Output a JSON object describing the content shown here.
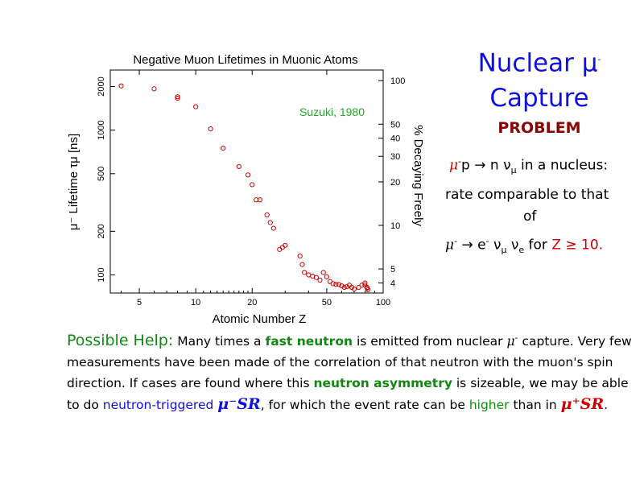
{
  "chart_data": {
    "type": "scatter",
    "title": "Negative Muon Lifetimes in Muonic Atoms",
    "xlabel": "Atomic Number  Z",
    "ylabel": "μ⁻ Lifetime  τμ [ns]",
    "y2label": "% Decaying Freely",
    "annotation": "Suzuki, 1980",
    "x_scale": "log",
    "y_scale": "log",
    "xlim": [
      3.5,
      100
    ],
    "ylim": [
      75,
      2600
    ],
    "x_ticks": [
      5,
      10,
      20,
      50,
      100
    ],
    "y_ticks": [
      100,
      200,
      500,
      1000,
      2000
    ],
    "y_tick_labels": [
      "100",
      "200",
      "500",
      "1000",
      "2000"
    ],
    "y2_ticks": [
      {
        "label": "100",
        "value": 2197
      },
      {
        "label": "50",
        "value": 1099
      },
      {
        "label": "40",
        "value": 879
      },
      {
        "label": "30",
        "value": 659
      },
      {
        "label": "20",
        "value": 439
      },
      {
        "label": "10",
        "value": 220
      },
      {
        "label": "5",
        "value": 110
      },
      {
        "label": "4",
        "value": 88
      }
    ],
    "marker_color": "#cc0000",
    "points": [
      {
        "x": 4,
        "y": 2020
      },
      {
        "x": 6,
        "y": 1930
      },
      {
        "x": 8,
        "y": 1700
      },
      {
        "x": 8,
        "y": 1660
      },
      {
        "x": 10,
        "y": 1450
      },
      {
        "x": 12,
        "y": 1020
      },
      {
        "x": 14,
        "y": 750
      },
      {
        "x": 17,
        "y": 560
      },
      {
        "x": 19,
        "y": 490
      },
      {
        "x": 20,
        "y": 420
      },
      {
        "x": 21,
        "y": 330
      },
      {
        "x": 22,
        "y": 330
      },
      {
        "x": 24,
        "y": 260
      },
      {
        "x": 25,
        "y": 230
      },
      {
        "x": 26,
        "y": 210
      },
      {
        "x": 28,
        "y": 150
      },
      {
        "x": 29,
        "y": 155
      },
      {
        "x": 30,
        "y": 160
      },
      {
        "x": 36,
        "y": 135
      },
      {
        "x": 37,
        "y": 118
      },
      {
        "x": 38,
        "y": 104
      },
      {
        "x": 40,
        "y": 100
      },
      {
        "x": 42,
        "y": 98
      },
      {
        "x": 44,
        "y": 96
      },
      {
        "x": 46,
        "y": 92
      },
      {
        "x": 48,
        "y": 104
      },
      {
        "x": 50,
        "y": 97
      },
      {
        "x": 52,
        "y": 90
      },
      {
        "x": 54,
        "y": 87
      },
      {
        "x": 56,
        "y": 86
      },
      {
        "x": 58,
        "y": 86
      },
      {
        "x": 60,
        "y": 84
      },
      {
        "x": 62,
        "y": 82
      },
      {
        "x": 64,
        "y": 83
      },
      {
        "x": 66,
        "y": 85
      },
      {
        "x": 68,
        "y": 82
      },
      {
        "x": 70,
        "y": 80
      },
      {
        "x": 74,
        "y": 82
      },
      {
        "x": 77,
        "y": 85
      },
      {
        "x": 80,
        "y": 88
      },
      {
        "x": 80,
        "y": 85
      },
      {
        "x": 82,
        "y": 82
      },
      {
        "x": 82,
        "y": 81
      },
      {
        "x": 83,
        "y": 79
      }
    ]
  },
  "side": {
    "title_line1": "Nuclear μ",
    "title_sup": "-",
    "title_line2": "Capture",
    "problem": "PROBLEM",
    "reaction_mu": "μ",
    "reaction_sup": "-",
    "reaction_rest": "p → n ν",
    "reaction_sub": "μ",
    "reaction_tail": " in a nucleus:",
    "rate_line": "rate comparable to that",
    "of_line": "of",
    "decay_mu": "μ",
    "decay_sup1": "-",
    "decay_arrow": " → e",
    "decay_sup2": "-",
    "decay_nu1": " ν",
    "decay_sub1": "μ",
    "decay_nu2": " ν",
    "decay_sub2": "e",
    "decay_for": "  for ",
    "decay_cond": "Z ≥ 10."
  },
  "bottom": {
    "possible_help": "Possible Help:",
    "s1": "   Many times a ",
    "fast_neutron": "fast neutron",
    "s2": " is emitted from nuclear ",
    "mu": "μ",
    "mu_sup": "-",
    "s3": " capture.",
    "s4": " Very few measurements have been made of the correlation of that neutron with the muon's spin direction.   If cases are found where this ",
    "neutron_asymmetry": "neutron asymmetry",
    "s5": " is sizeable, we may be able to do ",
    "neutron_triggered": "neutron-triggered",
    "musr_neg": "μ⁻SR",
    "s6": ", for which the event rate can be ",
    "higher": "higher",
    "s7": " than in ",
    "musr_pos": "μ⁺SR",
    "s8": "."
  }
}
